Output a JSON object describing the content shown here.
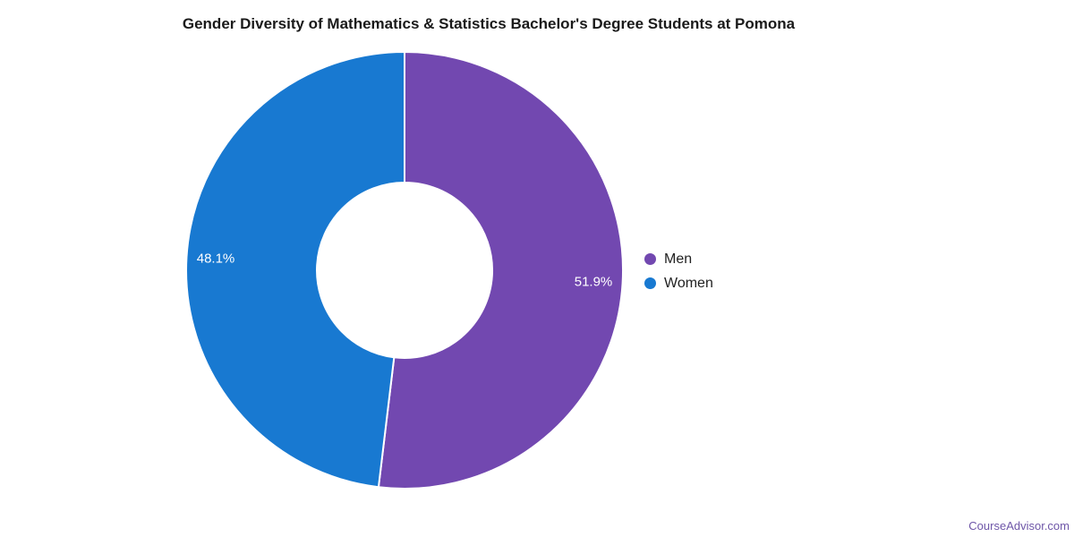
{
  "chart_data": {
    "type": "pie",
    "donut": true,
    "hole_ratio": 0.4,
    "title": "Gender Diversity of Mathematics & Statistics Bachelor's Degree Students at Pomona",
    "legend_position": "right",
    "direction": "clockwise",
    "start_angle_deg": 0,
    "background": "#ffffff",
    "slice_label_color": "#ffffff",
    "slice_gap_color": "#ffffff",
    "series": [
      {
        "name": "Men",
        "value": 51.9,
        "display_label": "51.9%",
        "color": "#7248B0"
      },
      {
        "name": "Women",
        "value": 48.1,
        "display_label": "48.1%",
        "color": "#1879D1"
      }
    ]
  },
  "footer": {
    "label": "CourseAdvisor.com",
    "color": "#6e56a8"
  }
}
